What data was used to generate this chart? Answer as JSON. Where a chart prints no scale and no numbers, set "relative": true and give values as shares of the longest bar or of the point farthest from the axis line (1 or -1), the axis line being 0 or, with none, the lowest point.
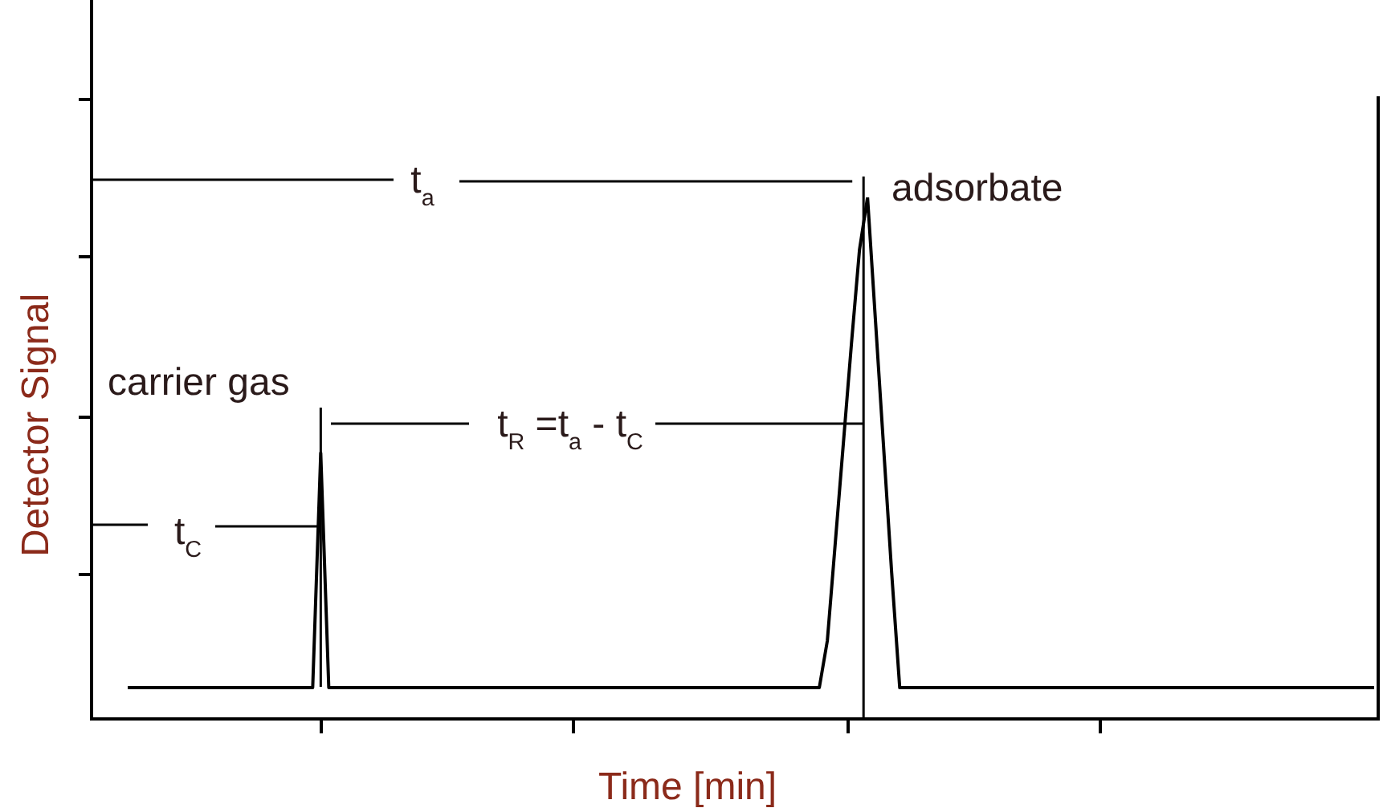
{
  "chart_data": {
    "type": "line",
    "relative": true,
    "xlabel": "Time [min]",
    "ylabel": "Detector Signal",
    "annotations": [
      "t$_{a}$",
      "t$_{R}$ =t$_{a}$ - t$_{C}$",
      "t$_{C}$",
      "carrier gas",
      "adsorbate"
    ],
    "categories": [
      null,
      null,
      null,
      null,
      null,
      null,
      null,
      null,
      null,
      null,
      null,
      null,
      null,
      null,
      null,
      null,
      null,
      null,
      null,
      null,
      null,
      null,
      null,
      null,
      null,
      null,
      null,
      null,
      null,
      null,
      null,
      null,
      null,
      null,
      null,
      null,
      null,
      null,
      null,
      null,
      null,
      null,
      null,
      null,
      null,
      null,
      null,
      null,
      null,
      null,
      null,
      null,
      null,
      null,
      null,
      null,
      null,
      null,
      null,
      null,
      null,
      null,
      null,
      null,
      null,
      null,
      null,
      null,
      null,
      null,
      null,
      null,
      null,
      null,
      null,
      null,
      null,
      null,
      null,
      null,
      null,
      null,
      null,
      null,
      null,
      null,
      null,
      null,
      null,
      null,
      null,
      null,
      null,
      null,
      null,
      null,
      null,
      null,
      null,
      null,
      null,
      null,
      null,
      null,
      null,
      null,
      null,
      null,
      null,
      null,
      null,
      null,
      null,
      null,
      null,
      null,
      null,
      null,
      null,
      null,
      null,
      null,
      null,
      null,
      null,
      null,
      null,
      null,
      null,
      null,
      null,
      null,
      null,
      null,
      null,
      null,
      null,
      null,
      null,
      null,
      null,
      null,
      null,
      null,
      null,
      null,
      null,
      null,
      null,
      null,
      null,
      null,
      null,
      null,
      null,
      null,
      null,
      null,
      null,
      null
    ],
    "series": [
      {
        "color": "#000000",
        "values": [
          null,
          null,
          null,
          null,
          0.06,
          0.06,
          0.06,
          0.06,
          0.06,
          0.06,
          0.06,
          0.06,
          0.06,
          0.06,
          0.06,
          0.06,
          0.06,
          0.06,
          0.06,
          0.06,
          0.06,
          0.06,
          0.06,
          0.06,
          0.06,
          0.06,
          0.06,
          0.06,
          0.51,
          0.06,
          0.06,
          0.06,
          0.06,
          0.06,
          0.06,
          0.06,
          0.06,
          0.06,
          0.06,
          0.06,
          0.06,
          0.06,
          0.06,
          0.06,
          0.06,
          0.06,
          0.06,
          0.06,
          0.06,
          0.06,
          0.06,
          0.06,
          0.06,
          0.06,
          0.06,
          0.06,
          0.06,
          0.06,
          0.06,
          0.06,
          0.06,
          0.06,
          0.06,
          0.06,
          0.06,
          0.06,
          0.06,
          0.06,
          0.06,
          0.06,
          0.06,
          0.06,
          0.06,
          0.06,
          0.06,
          0.06,
          0.06,
          0.06,
          0.06,
          0.06,
          0.06,
          0.06,
          0.06,
          0.06,
          0.06,
          0.06,
          0.06,
          0.06,
          0.06,
          0.06,
          0.06,
          0.15,
          0.34,
          0.53,
          0.72,
          0.9,
          1,
          0.76,
          0.52,
          0.28,
          0.06,
          0.06,
          0.06,
          0.06,
          0.06,
          0.06,
          0.06,
          0.06,
          0.06,
          0.06,
          0.06,
          0.06,
          0.06,
          0.06,
          0.06,
          0.06,
          0.06,
          0.06,
          0.06,
          0.06,
          0.06,
          0.06,
          0.06,
          0.06,
          0.06,
          0.06,
          0.06,
          0.06,
          0.06,
          0.06,
          0.06,
          0.06,
          0.06,
          0.06,
          0.06,
          0.06,
          0.06,
          0.06,
          0.06,
          0.06,
          0.06,
          0.06,
          0.06,
          0.06,
          0.06,
          0.06,
          0.06,
          0.06,
          0.06,
          0.06,
          0.06,
          0.06,
          0.06,
          0.06,
          0.06,
          0.06,
          0.06,
          0.06,
          0.06,
          0.06
        ]
      }
    ]
  }
}
